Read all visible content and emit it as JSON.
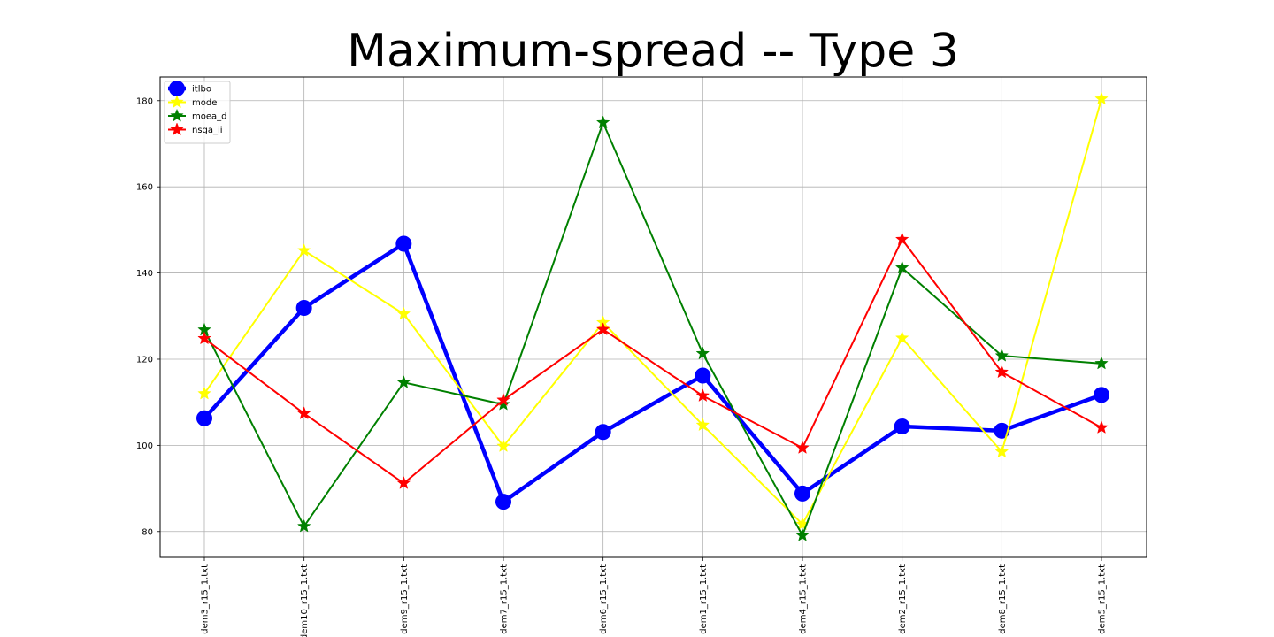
{
  "chart_data": {
    "type": "line",
    "title": "Maximum-spread -- Type 3",
    "xlabel": "",
    "ylabel": "",
    "categories": [
      "dem3_r15_1.txt",
      "dem10_r15_1.txt",
      "dem9_r15_1.txt",
      "dem7_r15_1.txt",
      "dem6_r15_1.txt",
      "dem1_r15_1.txt",
      "dem4_r15_1.txt",
      "dem2_r15_1.txt",
      "dem8_r15_1.txt",
      "dem5_r15_1.txt"
    ],
    "ylim": [
      74,
      185.5
    ],
    "yticks": [
      80,
      100,
      120,
      140,
      160,
      180
    ],
    "grid": true,
    "legend_position": "top-left",
    "series": [
      {
        "name": "itlbo",
        "color": "#0000ff",
        "marker": "circle",
        "line_width": "thick",
        "values": [
          106.3,
          131.9,
          146.8,
          86.9,
          103.1,
          116.2,
          88.8,
          104.4,
          103.4,
          111.7
        ]
      },
      {
        "name": "mode",
        "color": "#ffff00",
        "marker": "star",
        "line_width": "normal",
        "values": [
          112.0,
          145.2,
          130.5,
          99.8,
          128.5,
          104.7,
          81.7,
          124.9,
          98.5,
          180.4
        ]
      },
      {
        "name": "moea_d",
        "color": "#008000",
        "marker": "star",
        "line_width": "normal",
        "values": [
          126.8,
          81.2,
          114.6,
          109.5,
          174.9,
          121.3,
          79.1,
          141.2,
          120.8,
          119.0
        ]
      },
      {
        "name": "nsga_ii",
        "color": "#ff0000",
        "marker": "star",
        "line_width": "normal",
        "values": [
          124.8,
          107.4,
          91.2,
          110.5,
          126.9,
          111.5,
          99.4,
          147.8,
          117.0,
          104.1
        ]
      }
    ]
  }
}
